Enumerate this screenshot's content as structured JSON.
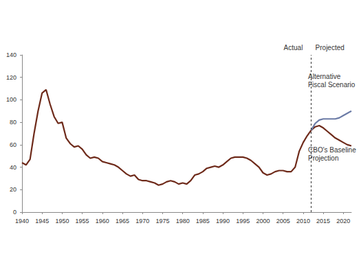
{
  "chart_data": {
    "type": "line",
    "x": [
      1940,
      1941,
      1942,
      1943,
      1944,
      1945,
      1946,
      1947,
      1948,
      1949,
      1950,
      1951,
      1952,
      1953,
      1954,
      1955,
      1956,
      1957,
      1958,
      1959,
      1960,
      1961,
      1962,
      1963,
      1964,
      1965,
      1966,
      1967,
      1968,
      1969,
      1970,
      1971,
      1972,
      1973,
      1974,
      1975,
      1976,
      1977,
      1978,
      1979,
      1980,
      1981,
      1982,
      1983,
      1984,
      1985,
      1986,
      1987,
      1988,
      1989,
      1990,
      1991,
      1992,
      1993,
      1994,
      1995,
      1996,
      1997,
      1998,
      1999,
      2000,
      2001,
      2002,
      2003,
      2004,
      2005,
      2006,
      2007,
      2008,
      2009,
      2010,
      2011,
      2012,
      2013,
      2014,
      2015,
      2016,
      2017,
      2018,
      2019,
      2020,
      2021,
      2022
    ],
    "series": [
      {
        "color": "#6e2a1a",
        "values": [
          44,
          42,
          47,
          70,
          90,
          106,
          109,
          96,
          85,
          79,
          80,
          66,
          61,
          58,
          59,
          56,
          51,
          48,
          49,
          48,
          45,
          44,
          43,
          42,
          40,
          37,
          34,
          32,
          33,
          29,
          28,
          28,
          27,
          26,
          24,
          25,
          27,
          28,
          27,
          25,
          26,
          25,
          28,
          33,
          34,
          36,
          39,
          40,
          41,
          40,
          42,
          45,
          48,
          49,
          49,
          49,
          48,
          46,
          43,
          40,
          35,
          33,
          34,
          36,
          37,
          37,
          36,
          36,
          40,
          54,
          62,
          68,
          73,
          null,
          null,
          null,
          null,
          null,
          null,
          null,
          null,
          null,
          null
        ]
      },
      {
        "name": "CBO's Baseline Projection",
        "color": "#6e2a1a",
        "values": [
          null,
          null,
          null,
          null,
          null,
          null,
          null,
          null,
          null,
          null,
          null,
          null,
          null,
          null,
          null,
          null,
          null,
          null,
          null,
          null,
          null,
          null,
          null,
          null,
          null,
          null,
          null,
          null,
          null,
          null,
          null,
          null,
          null,
          null,
          null,
          null,
          null,
          null,
          null,
          null,
          null,
          null,
          null,
          null,
          null,
          null,
          null,
          null,
          null,
          null,
          null,
          null,
          null,
          null,
          null,
          null,
          null,
          null,
          null,
          null,
          null,
          null,
          null,
          null,
          null,
          null,
          null,
          null,
          null,
          null,
          null,
          null,
          73,
          76,
          77,
          75,
          72,
          69,
          66,
          64,
          62,
          60,
          59
        ]
      },
      {
        "name": "Alternative Fiscal Scenario",
        "color": "#6b7ba6",
        "values": [
          null,
          null,
          null,
          null,
          null,
          null,
          null,
          null,
          null,
          null,
          null,
          null,
          null,
          null,
          null,
          null,
          null,
          null,
          null,
          null,
          null,
          null,
          null,
          null,
          null,
          null,
          null,
          null,
          null,
          null,
          null,
          null,
          null,
          null,
          null,
          null,
          null,
          null,
          null,
          null,
          null,
          null,
          null,
          null,
          null,
          null,
          null,
          null,
          null,
          null,
          null,
          null,
          null,
          null,
          null,
          null,
          null,
          null,
          null,
          null,
          null,
          null,
          null,
          null,
          null,
          null,
          null,
          null,
          null,
          null,
          null,
          null,
          73,
          79,
          82,
          83,
          83,
          83,
          83,
          84,
          86,
          88,
          90
        ]
      }
    ],
    "divider": 2012,
    "annotations": [
      "Actual",
      "Projected"
    ],
    "xlim": [
      1940,
      2022
    ],
    "xticks": [
      1940,
      1945,
      1950,
      1955,
      1960,
      1965,
      1970,
      1975,
      1980,
      1985,
      1990,
      1995,
      2000,
      2005,
      2010,
      2015,
      2020
    ],
    "ylim": [
      0,
      140
    ],
    "yticks": [
      0,
      20,
      40,
      60,
      80,
      100,
      120,
      140
    ],
    "grid": false
  }
}
